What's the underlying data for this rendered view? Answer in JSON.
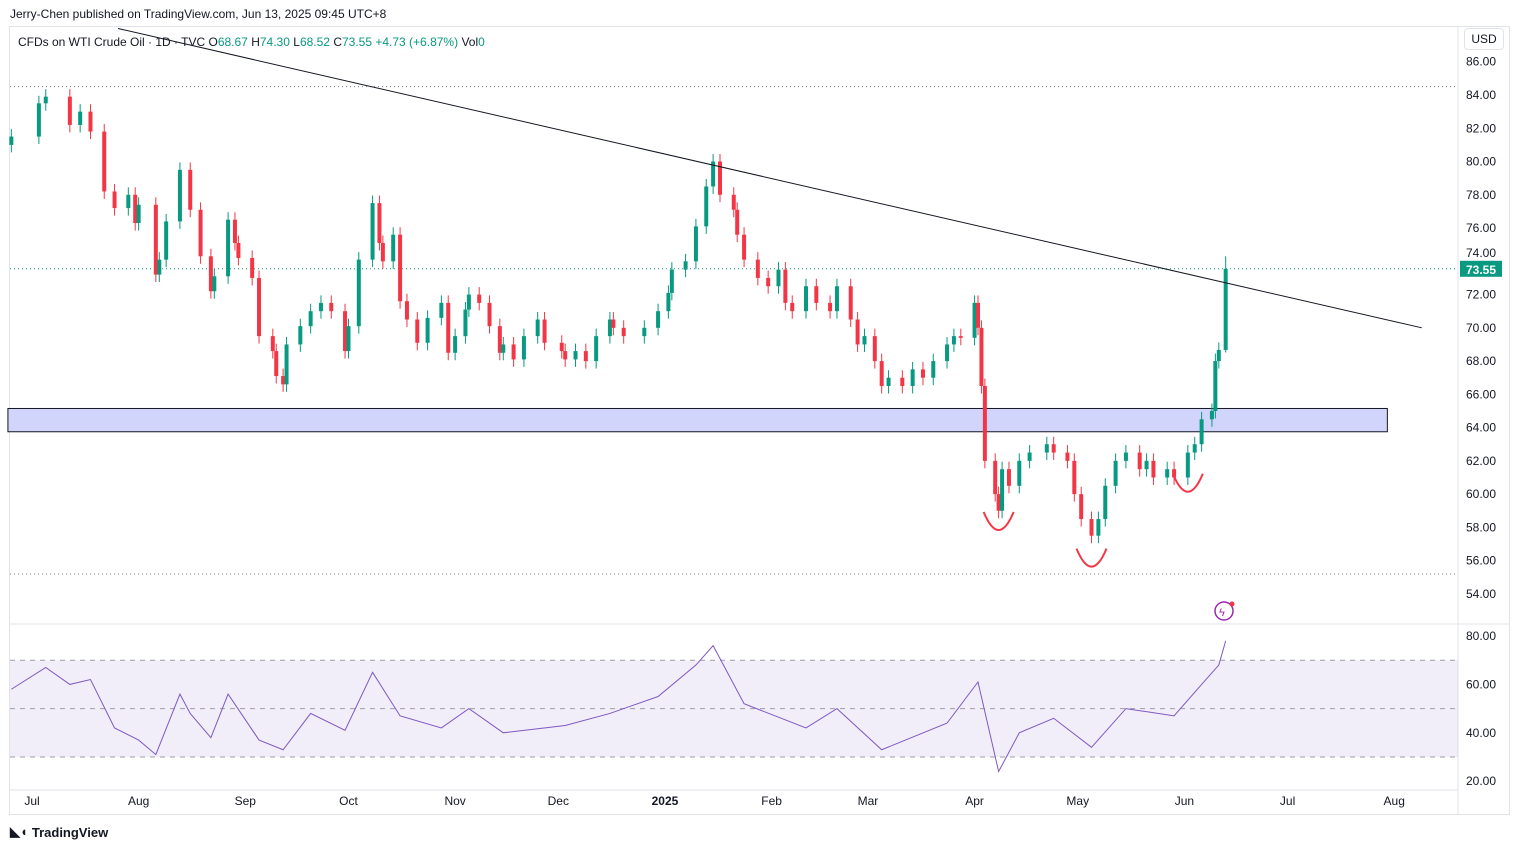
{
  "publisher": "Jerry-Chen published on TradingView.com, Jun 13, 2025 09:45 UTC+8",
  "legend": {
    "symbol": "CFDs on WTI Crude Oil · 1D · TVC",
    "o_label": "O",
    "o": "68.67",
    "h_label": "H",
    "h": "74.30",
    "l_label": "L",
    "l": "68.52",
    "c_label": "C",
    "c": "73.55",
    "change": "+4.73 (+6.87%)",
    "vol_label": "Vol",
    "vol": "0"
  },
  "currency": "USD",
  "footer": "TradingView",
  "colors": {
    "up": "#089981",
    "down": "#f23645",
    "rsi": "#7e57c2",
    "zone": "#d1d4fb",
    "arc": "#f23645"
  },
  "chart_data": {
    "type": "candlestick",
    "price_axis": {
      "ticks": [
        "86.00",
        "84.00",
        "82.00",
        "80.00",
        "78.00",
        "76.00",
        "74.00",
        "72.00",
        "70.00",
        "68.00",
        "66.00",
        "64.00",
        "62.00",
        "60.00",
        "58.00",
        "56.00",
        "54.00"
      ],
      "last_price": "73.55"
    },
    "time_axis": {
      "ticks": [
        [
          "2024-07-01",
          "Jul"
        ],
        [
          "2024-08-01",
          "Aug"
        ],
        [
          "2024-09-01",
          "Sep"
        ],
        [
          "2024-10-01",
          "Oct"
        ],
        [
          "2024-11-01",
          "Nov"
        ],
        [
          "2024-12-01",
          "Dec"
        ],
        [
          "2025-01-01",
          "2025"
        ],
        [
          "2025-02-01",
          "Feb"
        ],
        [
          "2025-03-01",
          "Mar"
        ],
        [
          "2025-04-01",
          "Apr"
        ],
        [
          "2025-05-01",
          "May"
        ],
        [
          "2025-06-01",
          "Jun"
        ],
        [
          "2025-07-01",
          "Jul"
        ],
        [
          "2025-08-01",
          "Aug"
        ]
      ]
    },
    "candles": [
      [
        "2024-06-25",
        81.5
      ],
      [
        "2024-07-03",
        83.5
      ],
      [
        "2024-07-05",
        83.9
      ],
      [
        "2024-07-12",
        82.2
      ],
      [
        "2024-07-15",
        83.0
      ],
      [
        "2024-07-18",
        81.8
      ],
      [
        "2024-07-22",
        78.2
      ],
      [
        "2024-07-25",
        77.2
      ],
      [
        "2024-07-29",
        78.0
      ],
      [
        "2024-07-31",
        76.3
      ],
      [
        "2024-08-01",
        77.4
      ],
      [
        "2024-08-06",
        73.2
      ],
      [
        "2024-08-07",
        74.1
      ],
      [
        "2024-08-09",
        76.4
      ],
      [
        "2024-08-13",
        79.5
      ],
      [
        "2024-08-16",
        77.1
      ],
      [
        "2024-08-19",
        74.3
      ],
      [
        "2024-08-22",
        72.2
      ],
      [
        "2024-08-23",
        73.1
      ],
      [
        "2024-08-27",
        76.5
      ],
      [
        "2024-08-29",
        75.1
      ],
      [
        "2024-08-30",
        74.2
      ],
      [
        "2024-09-03",
        73.0
      ],
      [
        "2024-09-05",
        69.5
      ],
      [
        "2024-09-09",
        68.6
      ],
      [
        "2024-09-10",
        67.1
      ],
      [
        "2024-09-12",
        66.6
      ],
      [
        "2024-09-13",
        69.0
      ],
      [
        "2024-09-17",
        70.1
      ],
      [
        "2024-09-20",
        71.0
      ],
      [
        "2024-09-23",
        71.5
      ],
      [
        "2024-09-26",
        71.0
      ],
      [
        "2024-09-30",
        68.6
      ],
      [
        "2024-10-01",
        70.1
      ],
      [
        "2024-10-04",
        74.1
      ],
      [
        "2024-10-08",
        77.5
      ],
      [
        "2024-10-10",
        75.1
      ],
      [
        "2024-10-11",
        74.0
      ],
      [
        "2024-10-14",
        75.6
      ],
      [
        "2024-10-16",
        71.6
      ],
      [
        "2024-10-18",
        70.5
      ],
      [
        "2024-10-21",
        69.1
      ],
      [
        "2024-10-24",
        70.6
      ],
      [
        "2024-10-28",
        71.5
      ],
      [
        "2024-10-30",
        68.5
      ],
      [
        "2024-11-01",
        69.5
      ],
      [
        "2024-11-04",
        71.1
      ],
      [
        "2024-11-05",
        72.0
      ],
      [
        "2024-11-08",
        71.5
      ],
      [
        "2024-11-11",
        70.1
      ],
      [
        "2024-11-14",
        68.5
      ],
      [
        "2024-11-15",
        69.0
      ],
      [
        "2024-11-18",
        68.1
      ],
      [
        "2024-11-21",
        69.5
      ],
      [
        "2024-11-25",
        70.5
      ],
      [
        "2024-11-27",
        69.1
      ],
      [
        "2024-12-02",
        68.6
      ],
      [
        "2024-12-03",
        68.1
      ],
      [
        "2024-12-06",
        68.6
      ],
      [
        "2024-12-09",
        68.0
      ],
      [
        "2024-12-12",
        69.5
      ],
      [
        "2024-12-16",
        70.5
      ],
      [
        "2024-12-17",
        70.0
      ],
      [
        "2024-12-20",
        69.5
      ],
      [
        "2024-12-26",
        70.0
      ],
      [
        "2024-12-30",
        71.0
      ],
      [
        "2025-01-02",
        72.1
      ],
      [
        "2025-01-03",
        73.5
      ],
      [
        "2025-01-07",
        74.0
      ],
      [
        "2025-01-10",
        76.1
      ],
      [
        "2025-01-13",
        78.5
      ],
      [
        "2025-01-15",
        80.0
      ],
      [
        "2025-01-17",
        78.0
      ],
      [
        "2025-01-21",
        77.1
      ],
      [
        "2025-01-22",
        75.6
      ],
      [
        "2025-01-24",
        74.1
      ],
      [
        "2025-01-28",
        73.0
      ],
      [
        "2025-01-31",
        72.5
      ],
      [
        "2025-02-03",
        73.5
      ],
      [
        "2025-02-05",
        71.5
      ],
      [
        "2025-02-07",
        71.0
      ],
      [
        "2025-02-11",
        72.5
      ],
      [
        "2025-02-14",
        71.5
      ],
      [
        "2025-02-18",
        71.0
      ],
      [
        "2025-02-20",
        72.5
      ],
      [
        "2025-02-24",
        70.5
      ],
      [
        "2025-02-26",
        69.0
      ],
      [
        "2025-02-28",
        69.5
      ],
      [
        "2025-03-03",
        68.0
      ],
      [
        "2025-03-05",
        66.5
      ],
      [
        "2025-03-07",
        67.0
      ],
      [
        "2025-03-11",
        66.5
      ],
      [
        "2025-03-14",
        67.5
      ],
      [
        "2025-03-17",
        67.0
      ],
      [
        "2025-03-20",
        68.0
      ],
      [
        "2025-03-24",
        69.0
      ],
      [
        "2025-03-26",
        69.5
      ],
      [
        "2025-03-28",
        69.4
      ],
      [
        "2025-04-01",
        71.5
      ],
      [
        "2025-04-02",
        70.0
      ],
      [
        "2025-04-03",
        66.5
      ],
      [
        "2025-04-04",
        62.0
      ],
      [
        "2025-04-07",
        60.0
      ],
      [
        "2025-04-08",
        59.0
      ],
      [
        "2025-04-09",
        61.5
      ],
      [
        "2025-04-11",
        60.5
      ],
      [
        "2025-04-14",
        62.0
      ],
      [
        "2025-04-17",
        62.5
      ],
      [
        "2025-04-22",
        63.0
      ],
      [
        "2025-04-24",
        62.5
      ],
      [
        "2025-04-28",
        62.0
      ],
      [
        "2025-04-30",
        60.0
      ],
      [
        "2025-05-02",
        58.5
      ],
      [
        "2025-05-05",
        57.5
      ],
      [
        "2025-05-07",
        58.5
      ],
      [
        "2025-05-09",
        60.5
      ],
      [
        "2025-05-12",
        62.0
      ],
      [
        "2025-05-15",
        62.5
      ],
      [
        "2025-05-19",
        61.5
      ],
      [
        "2025-05-21",
        62.0
      ],
      [
        "2025-05-23",
        61.0
      ],
      [
        "2025-05-27",
        61.5
      ],
      [
        "2025-05-29",
        61.0
      ],
      [
        "2025-06-02",
        62.5
      ],
      [
        "2025-06-04",
        63.0
      ],
      [
        "2025-06-06",
        64.5
      ],
      [
        "2025-06-09",
        65.0
      ],
      [
        "2025-06-10",
        68.0
      ],
      [
        "2025-06-11",
        68.67
      ],
      [
        "2025-06-13",
        68.67,
        74.3,
        68.52,
        73.55
      ]
    ],
    "rsi": {
      "ticks": [
        "80.00",
        "60.00",
        "40.00",
        "20.00"
      ],
      "levels": [
        70,
        50,
        30
      ],
      "values": [
        [
          "2024-06-25",
          58
        ],
        [
          "2024-07-05",
          67
        ],
        [
          "2024-07-12",
          60
        ],
        [
          "2024-07-18",
          62
        ],
        [
          "2024-07-25",
          42
        ],
        [
          "2024-08-01",
          37
        ],
        [
          "2024-08-06",
          31
        ],
        [
          "2024-08-13",
          56
        ],
        [
          "2024-08-16",
          48
        ],
        [
          "2024-08-22",
          38
        ],
        [
          "2024-08-27",
          56
        ],
        [
          "2024-09-05",
          37
        ],
        [
          "2024-09-12",
          33
        ],
        [
          "2024-09-20",
          48
        ],
        [
          "2024-09-30",
          41
        ],
        [
          "2024-10-08",
          65
        ],
        [
          "2024-10-16",
          47
        ],
        [
          "2024-10-28",
          42
        ],
        [
          "2024-11-05",
          50
        ],
        [
          "2024-11-15",
          40
        ],
        [
          "2024-12-03",
          43
        ],
        [
          "2024-12-16",
          48
        ],
        [
          "2024-12-30",
          55
        ],
        [
          "2025-01-10",
          68
        ],
        [
          "2025-01-15",
          76
        ],
        [
          "2025-01-24",
          52
        ],
        [
          "2025-02-11",
          42
        ],
        [
          "2025-02-20",
          50
        ],
        [
          "2025-03-05",
          33
        ],
        [
          "2025-03-24",
          44
        ],
        [
          "2025-04-02",
          61
        ],
        [
          "2025-04-08",
          24
        ],
        [
          "2025-04-14",
          40
        ],
        [
          "2025-04-24",
          46
        ],
        [
          "2025-05-05",
          34
        ],
        [
          "2025-05-15",
          50
        ],
        [
          "2025-05-29",
          47
        ],
        [
          "2025-06-06",
          60
        ],
        [
          "2025-06-11",
          68
        ],
        [
          "2025-06-13",
          78
        ]
      ]
    },
    "drawings": {
      "trendline": [
        [
          "2024-07-26",
          88.0
        ],
        [
          "2025-08-09",
          70.0
        ]
      ],
      "zone": {
        "from": "2024-06-24",
        "to": "2025-07-30",
        "low": 63.75,
        "high": 65.15
      },
      "horizontal_dotted": [
        84.5,
        55.2
      ],
      "arcs": [
        [
          "2025-04-08",
          57.6
        ],
        [
          "2025-05-05",
          55.4
        ],
        [
          "2025-06-02",
          59.9
        ]
      ]
    }
  }
}
